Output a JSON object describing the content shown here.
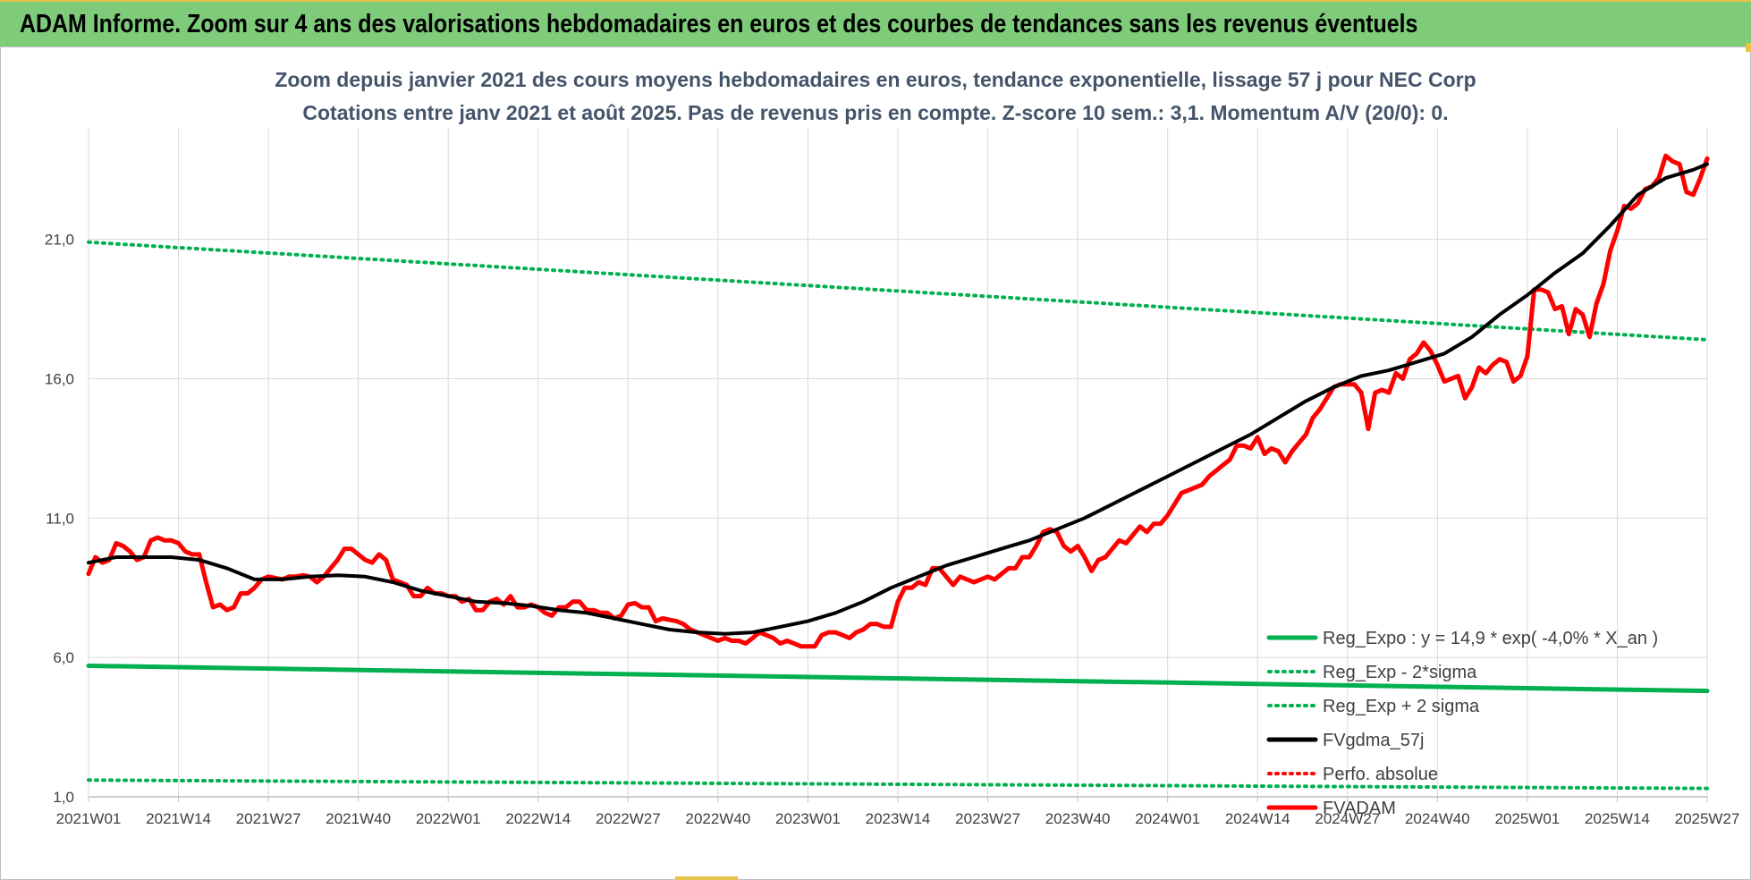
{
  "banner": {
    "title": "ADAM Informe. Zoom sur 4 ans des valorisations hebdomadaires en euros et des courbes de tendances sans les revenus éventuels"
  },
  "chart_data": {
    "type": "line",
    "title": "Zoom depuis janvier 2021 des cours moyens hebdomadaires en euros, tendance exponentielle, lissage 57 j pour NEC Corp",
    "subtitle": "Cotations entre janv 2021 et août 2025.  Pas de revenus pris en compte. Z-score 10 sem.: 3,1. Momentum A/V (20/0): 0.",
    "xlabel": "",
    "ylabel": "",
    "ylim": [
      1,
      25
    ],
    "x_ticks": [
      "2021W01",
      "2021W14",
      "2021W27",
      "2021W40",
      "2022W01",
      "2022W14",
      "2022W27",
      "2022W40",
      "2023W01",
      "2023W14",
      "2023W27",
      "2023W40",
      "2024W01",
      "2024W14",
      "2024W27",
      "2024W40",
      "2025W01",
      "2025W14",
      "2025W27"
    ],
    "y_ticks": [
      "1,0",
      "6,0",
      "11,0",
      "16,0",
      "21,0"
    ],
    "y_tick_values": [
      1,
      6,
      11,
      16,
      21
    ],
    "grid": true,
    "legend_position": "bottom-right",
    "legend": [
      {
        "label": "Reg_Expo : y = 14,9 * exp( -4,0% *  X_an )",
        "color": "#00b050",
        "style": "solid"
      },
      {
        "label": "Reg_Exp - 2*sigma",
        "color": "#00b050",
        "style": "dotted"
      },
      {
        "label": "Reg_Exp + 2 sigma",
        "color": "#00b050",
        "style": "dotted"
      },
      {
        "label": "FVgdma_57j",
        "color": "#000000",
        "style": "solid"
      },
      {
        "label": "Perfo. absolue",
        "color": "#ff0000",
        "style": "dotted"
      },
      {
        "label": "FVADAM",
        "color": "#ff0000",
        "style": "solid"
      }
    ],
    "series": [
      {
        "name": "Reg_Expo : y = 14,9 * exp( -4,0% *  X_an )",
        "color": "#00b050",
        "style": "solid",
        "x": [
          0,
          234
        ],
        "values": [
          5.7,
          4.8
        ]
      },
      {
        "name": "Reg_Exp - 2*sigma",
        "color": "#00b050",
        "style": "dotted",
        "x": [
          0,
          234
        ],
        "values": [
          1.6,
          1.3
        ]
      },
      {
        "name": "Reg_Exp + 2 sigma",
        "color": "#00b050",
        "style": "dotted",
        "x": [
          0,
          234
        ],
        "values": [
          20.9,
          17.4
        ]
      },
      {
        "name": "FVgdma_57j",
        "color": "#000000",
        "style": "solid",
        "x": [
          0,
          4,
          8,
          12,
          16,
          20,
          24,
          28,
          32,
          36,
          40,
          44,
          48,
          52,
          56,
          60,
          64,
          68,
          72,
          76,
          80,
          84,
          88,
          92,
          96,
          100,
          104,
          108,
          112,
          116,
          120,
          124,
          128,
          132,
          136,
          140,
          144,
          148,
          152,
          156,
          160,
          164,
          168,
          172,
          176,
          180,
          184,
          188,
          192,
          196,
          200,
          204,
          208,
          212,
          216,
          220,
          224,
          228,
          232,
          234
        ],
        "values": [
          9.4,
          9.6,
          9.6,
          9.6,
          9.5,
          9.2,
          8.8,
          8.8,
          8.9,
          8.95,
          8.9,
          8.7,
          8.4,
          8.2,
          8.0,
          7.95,
          7.85,
          7.7,
          7.6,
          7.4,
          7.2,
          7.0,
          6.9,
          6.85,
          6.9,
          7.1,
          7.3,
          7.6,
          8.0,
          8.5,
          8.9,
          9.3,
          9.6,
          9.9,
          10.2,
          10.6,
          11.0,
          11.5,
          12.0,
          12.5,
          13.0,
          13.5,
          14.0,
          14.6,
          15.2,
          15.7,
          16.1,
          16.3,
          16.6,
          16.9,
          17.5,
          18.3,
          19.0,
          19.8,
          20.5,
          21.5,
          22.6,
          23.2,
          23.5,
          23.7
        ]
      },
      {
        "name": "FVADAM",
        "color": "#ff0000",
        "style": "solid",
        "x": [
          0,
          1,
          2,
          3,
          4,
          5,
          6,
          7,
          8,
          9,
          10,
          11,
          12,
          13,
          14,
          15,
          16,
          17,
          18,
          19,
          20,
          21,
          22,
          23,
          24,
          25,
          26,
          27,
          28,
          29,
          30,
          31,
          32,
          33,
          34,
          35,
          36,
          37,
          38,
          39,
          40,
          41,
          42,
          43,
          44,
          45,
          46,
          47,
          48,
          49,
          50,
          51,
          52,
          53,
          54,
          55,
          56,
          57,
          58,
          59,
          60,
          61,
          62,
          63,
          64,
          65,
          66,
          67,
          68,
          69,
          70,
          71,
          72,
          73,
          74,
          75,
          76,
          77,
          78,
          79,
          80,
          81,
          82,
          83,
          84,
          85,
          86,
          87,
          88,
          89,
          90,
          91,
          92,
          93,
          94,
          95,
          96,
          97,
          98,
          99,
          100,
          101,
          102,
          103,
          104,
          105,
          106,
          107,
          108,
          109,
          110,
          111,
          112,
          113,
          114,
          115,
          116,
          117,
          118,
          119,
          120,
          121,
          122,
          123,
          124,
          125,
          126,
          127,
          128,
          129,
          130,
          131,
          132,
          133,
          134,
          135,
          136,
          137,
          138,
          139,
          140,
          141,
          142,
          143,
          144,
          145,
          146,
          147,
          148,
          149,
          150,
          151,
          152,
          153,
          154,
          155,
          156,
          157,
          158,
          159,
          160,
          161,
          162,
          163,
          164,
          165,
          166,
          167,
          168,
          169,
          170,
          171,
          172,
          173,
          174,
          175,
          176,
          177,
          178,
          179,
          180,
          181,
          182,
          183,
          184,
          185,
          186,
          187,
          188,
          189,
          190,
          191,
          192,
          193,
          194,
          195,
          196,
          197,
          198,
          199,
          200,
          201,
          202,
          203,
          204,
          205,
          206,
          207,
          208,
          209,
          210,
          211,
          212,
          213,
          214,
          215,
          216,
          217,
          218,
          219,
          220,
          221,
          222,
          223,
          224,
          225,
          226,
          227,
          228,
          229,
          230,
          231,
          232,
          233,
          234
        ],
        "values": [
          9.0,
          9.6,
          9.4,
          9.5,
          10.1,
          10.0,
          9.8,
          9.5,
          9.6,
          10.2,
          10.3,
          10.2,
          10.2,
          10.1,
          9.8,
          9.7,
          9.7,
          8.7,
          7.8,
          7.9,
          7.7,
          7.8,
          8.3,
          8.3,
          8.5,
          8.8,
          8.9,
          8.85,
          8.8,
          8.9,
          8.9,
          8.95,
          8.9,
          8.7,
          8.9,
          9.2,
          9.5,
          9.9,
          9.9,
          9.7,
          9.5,
          9.4,
          9.7,
          9.5,
          8.8,
          8.7,
          8.6,
          8.2,
          8.2,
          8.5,
          8.3,
          8.3,
          8.2,
          8.2,
          8.0,
          8.1,
          7.7,
          7.7,
          8.0,
          8.1,
          7.9,
          8.2,
          7.8,
          7.8,
          7.9,
          7.8,
          7.6,
          7.5,
          7.8,
          7.8,
          8.0,
          8.0,
          7.7,
          7.7,
          7.6,
          7.6,
          7.4,
          7.5,
          7.9,
          7.95,
          7.8,
          7.8,
          7.3,
          7.4,
          7.35,
          7.3,
          7.2,
          7.0,
          6.9,
          6.8,
          6.7,
          6.6,
          6.7,
          6.6,
          6.6,
          6.5,
          6.7,
          6.9,
          6.8,
          6.7,
          6.5,
          6.6,
          6.5,
          6.4,
          6.4,
          6.4,
          6.8,
          6.9,
          6.9,
          6.8,
          6.7,
          6.9,
          7.0,
          7.2,
          7.2,
          7.1,
          7.1,
          8.0,
          8.5,
          8.5,
          8.7,
          8.6,
          9.2,
          9.2,
          8.9,
          8.6,
          8.9,
          8.8,
          8.7,
          8.8,
          8.9,
          8.8,
          9.0,
          9.2,
          9.2,
          9.6,
          9.6,
          10.0,
          10.5,
          10.6,
          10.5,
          10.0,
          9.8,
          10.0,
          9.6,
          9.1,
          9.5,
          9.6,
          9.9,
          10.2,
          10.1,
          10.4,
          10.7,
          10.5,
          10.8,
          10.8,
          11.1,
          11.5,
          11.9,
          12.0,
          12.1,
          12.2,
          12.5,
          12.7,
          12.9,
          13.1,
          13.6,
          13.6,
          13.5,
          13.9,
          13.3,
          13.5,
          13.4,
          13.0,
          13.4,
          13.7,
          14.0,
          14.6,
          14.9,
          15.3,
          15.7,
          15.8,
          15.8,
          15.8,
          15.5,
          14.2,
          15.5,
          15.6,
          15.5,
          16.2,
          16.0,
          16.7,
          16.9,
          17.3,
          17.0,
          16.5,
          15.9,
          16.0,
          16.1,
          15.3,
          15.7,
          16.4,
          16.2,
          16.5,
          16.7,
          16.6,
          15.9,
          16.1,
          16.8,
          19.2,
          19.2,
          19.1,
          18.5,
          18.6,
          17.6,
          18.5,
          18.3,
          17.5,
          18.7,
          19.4,
          20.6,
          21.3,
          22.2,
          22.1,
          22.3,
          22.8,
          22.9,
          23.2,
          24.0,
          23.8,
          23.7,
          22.7,
          22.6,
          23.2,
          23.9
        ]
      }
    ]
  }
}
